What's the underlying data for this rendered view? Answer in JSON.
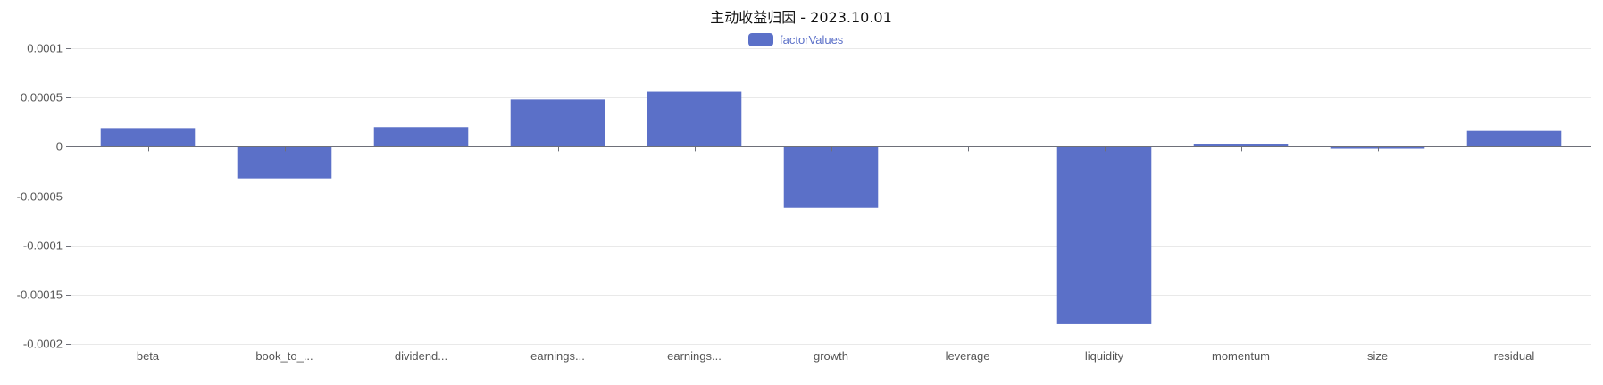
{
  "chart_data": {
    "type": "bar",
    "title": "主动收益归因 - 2023.10.01",
    "legend": {
      "position": "top-center",
      "entries": [
        "factorValues"
      ]
    },
    "categories": [
      "beta",
      "book_to_...",
      "dividend...",
      "earnings...",
      "earnings...",
      "growth",
      "leverage",
      "liquidity",
      "momentum",
      "size",
      "residual"
    ],
    "series": [
      {
        "name": "factorValues",
        "color": "#5b70c8",
        "values": [
          1.9e-05,
          -3.2e-05,
          2e-05,
          4.8e-05,
          5.6e-05,
          -6.2e-05,
          1e-06,
          -0.00018,
          3e-06,
          -2e-06,
          1.6e-05
        ]
      }
    ],
    "y_ticks": [
      0.0001,
      5e-05,
      0,
      -5e-05,
      -0.0001,
      -0.00015,
      -0.0002
    ],
    "y_tick_labels": [
      "0.0001",
      "0.00005",
      "0",
      "-0.00005",
      "-0.0001",
      "-0.00015",
      "-0.0002"
    ],
    "ylim": [
      -0.0002,
      0.0001
    ],
    "grid": true,
    "xlabel": "",
    "ylabel": ""
  }
}
